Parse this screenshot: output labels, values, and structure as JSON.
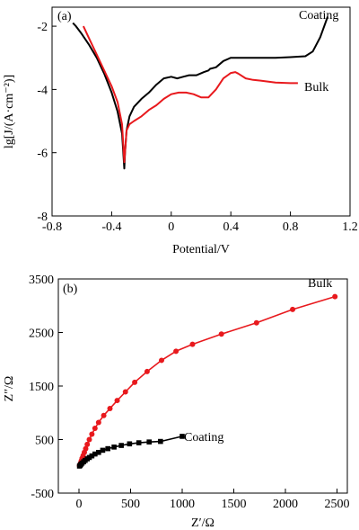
{
  "chart_data": [
    {
      "type": "line",
      "panel_label": "(a)",
      "xlabel": "Potential/V",
      "ylabel": "lg[J/(A·cm⁻²)]",
      "xlim": [
        -0.8,
        1.2
      ],
      "ylim": [
        -8,
        -1.4
      ],
      "xticks": [
        -0.8,
        -0.4,
        0,
        0.4,
        0.8,
        1.2
      ],
      "xtick_labels": [
        "-0.8",
        "-0.4",
        "0",
        "0.4",
        "0.8",
        "1.2"
      ],
      "yticks": [
        -8,
        -6,
        -4,
        -2
      ],
      "ytick_labels": [
        "-8",
        "-6",
        "-4",
        "-2"
      ],
      "grid": false,
      "series": [
        {
          "name": "Coating",
          "color": "#000000",
          "x": [
            -0.66,
            -0.64,
            -0.6,
            -0.55,
            -0.5,
            -0.45,
            -0.4,
            -0.36,
            -0.33,
            -0.315,
            -0.31,
            -0.3,
            -0.28,
            -0.25,
            -0.2,
            -0.15,
            -0.1,
            -0.05,
            0.0,
            0.04,
            0.08,
            0.12,
            0.17,
            0.22,
            0.25,
            0.26,
            0.3,
            0.35,
            0.4,
            0.45,
            0.5,
            0.6,
            0.7,
            0.8,
            0.9,
            0.95,
            1.0,
            1.05
          ],
          "y": [
            -1.9,
            -2.0,
            -2.25,
            -2.6,
            -3.0,
            -3.5,
            -4.1,
            -4.7,
            -5.4,
            -6.5,
            -6.0,
            -5.3,
            -4.85,
            -4.55,
            -4.3,
            -4.1,
            -3.85,
            -3.65,
            -3.6,
            -3.65,
            -3.6,
            -3.55,
            -3.55,
            -3.45,
            -3.4,
            -3.35,
            -3.3,
            -3.1,
            -3.0,
            -3.0,
            -3.0,
            -3.0,
            -3.0,
            -2.98,
            -2.95,
            -2.8,
            -2.35,
            -1.7
          ]
        },
        {
          "name": "Bulk",
          "color": "#e8191d",
          "x": [
            -0.59,
            -0.55,
            -0.5,
            -0.45,
            -0.4,
            -0.36,
            -0.33,
            -0.315,
            -0.31,
            -0.3,
            -0.28,
            -0.25,
            -0.2,
            -0.15,
            -0.1,
            -0.05,
            0.0,
            0.05,
            0.1,
            0.15,
            0.2,
            0.25,
            0.3,
            0.35,
            0.4,
            0.43,
            0.45,
            0.5,
            0.55,
            0.6,
            0.7,
            0.8,
            0.85
          ],
          "y": [
            -2.0,
            -2.4,
            -2.9,
            -3.4,
            -3.9,
            -4.4,
            -5.1,
            -6.3,
            -6.0,
            -5.3,
            -5.1,
            -5.0,
            -4.85,
            -4.65,
            -4.5,
            -4.3,
            -4.15,
            -4.1,
            -4.1,
            -4.15,
            -4.25,
            -4.25,
            -4.0,
            -3.65,
            -3.48,
            -3.45,
            -3.5,
            -3.65,
            -3.7,
            -3.72,
            -3.78,
            -3.8,
            -3.8
          ]
        }
      ],
      "annotations": [
        "Coating",
        "Bulk"
      ]
    },
    {
      "type": "scatter",
      "panel_label": "(b)",
      "xlabel": "Z′/Ω",
      "ylabel": "Z″/Ω",
      "xlim": [
        -200,
        2600
      ],
      "ylim": [
        -500,
        3500
      ],
      "xticks": [
        0,
        500,
        1000,
        1500,
        2000,
        2500
      ],
      "xtick_labels": [
        "0",
        "500",
        "1000",
        "1500",
        "2000",
        "2500"
      ],
      "yticks": [
        -500,
        500,
        1500,
        2500,
        3500
      ],
      "ytick_labels": [
        "-500",
        "500",
        "1500",
        "2500",
        "3500"
      ],
      "grid": false,
      "series": [
        {
          "name": "Bulk",
          "color": "#e8191d",
          "marker": "circle",
          "x": [
            5,
            10,
            15,
            22,
            30,
            40,
            52,
            65,
            80,
            100,
            125,
            155,
            190,
            240,
            300,
            370,
            450,
            540,
            660,
            800,
            940,
            1100,
            1380,
            1720,
            2070,
            2480
          ],
          "y": [
            10,
            30,
            60,
            100,
            150,
            200,
            260,
            330,
            410,
            500,
            600,
            710,
            820,
            950,
            1080,
            1230,
            1390,
            1570,
            1770,
            1980,
            2150,
            2280,
            2470,
            2680,
            2930,
            3170
          ]
        },
        {
          "name": "Coating",
          "color": "#000000",
          "marker": "square",
          "x": [
            5,
            12,
            20,
            30,
            45,
            60,
            80,
            100,
            125,
            155,
            190,
            230,
            280,
            340,
            410,
            490,
            580,
            680,
            790,
            1000
          ],
          "y": [
            5,
            20,
            40,
            60,
            85,
            110,
            140,
            165,
            195,
            230,
            260,
            300,
            330,
            360,
            390,
            420,
            440,
            455,
            465,
            560
          ]
        }
      ],
      "annotations": [
        "Bulk",
        "Coating"
      ]
    }
  ]
}
